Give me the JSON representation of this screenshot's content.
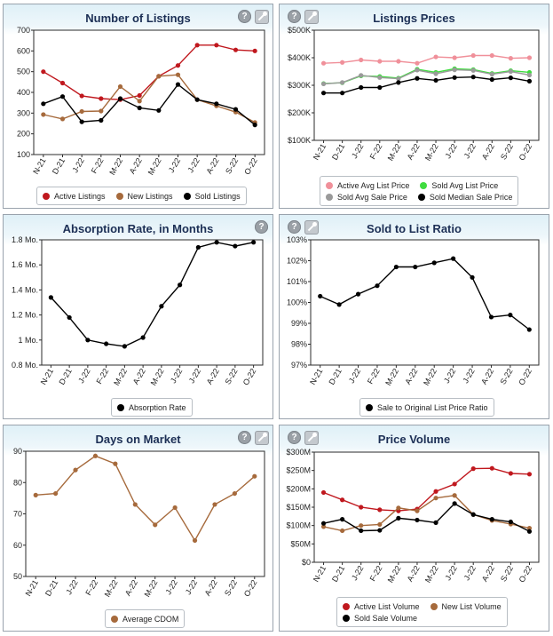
{
  "panels": {
    "listings": {
      "title": "Number of Listings"
    },
    "prices": {
      "title": "Listings Prices"
    },
    "absorption": {
      "title": "Absorption Rate, in Months"
    },
    "ratio": {
      "title": "Sold to List Ratio"
    },
    "dom": {
      "title": "Days on Market"
    },
    "volume": {
      "title": "Price Volume"
    }
  },
  "icons": {
    "help": "?"
  },
  "chart_data": [
    {
      "id": "listings",
      "type": "line",
      "title": "Number of Listings",
      "categories": [
        "N-21",
        "D-21",
        "J-22",
        "F-22",
        "M-22",
        "A-22",
        "M-22",
        "J-22",
        "J-22",
        "A-22",
        "S-22",
        "O-22"
      ],
      "ylim": [
        100,
        700
      ],
      "yticks": [
        100,
        200,
        300,
        400,
        500,
        600,
        700
      ],
      "ytick_labels": [
        "100",
        "200",
        "300",
        "400",
        "500",
        "600",
        "700"
      ],
      "grid": false,
      "legend_position": "bottom",
      "series": [
        {
          "name": "Active Listings",
          "color": "#c0181e",
          "values": [
            500,
            445,
            383,
            370,
            365,
            385,
            478,
            530,
            628,
            628,
            605,
            600
          ]
        },
        {
          "name": "New Listings",
          "color": "#a66a3c",
          "values": [
            293,
            272,
            308,
            310,
            428,
            358,
            478,
            485,
            365,
            335,
            305,
            255
          ]
        },
        {
          "name": "Sold Listings",
          "color": "#000000",
          "values": [
            345,
            380,
            258,
            265,
            370,
            325,
            313,
            438,
            365,
            345,
            318,
            243
          ]
        }
      ],
      "legend_rows": [
        [
          0,
          1,
          2
        ]
      ]
    },
    {
      "id": "prices",
      "type": "line",
      "title": "Listings Prices",
      "categories": [
        "N-21",
        "D-21",
        "J-22",
        "F-22",
        "M-22",
        "A-22",
        "M-22",
        "J-22",
        "J-22",
        "A-22",
        "S-22",
        "O-22"
      ],
      "ylim": [
        100000,
        500000
      ],
      "yticks": [
        100000,
        200000,
        300000,
        400000,
        500000
      ],
      "ytick_labels": [
        "$100K",
        "$200K",
        "$300K",
        "$400K",
        "$500K"
      ],
      "grid": false,
      "legend_position": "bottom",
      "series": [
        {
          "name": "Active Avg List Price",
          "color": "#f0909a",
          "values": [
            380000,
            383000,
            392000,
            387000,
            387000,
            380000,
            403000,
            400000,
            408000,
            408000,
            398000,
            400000
          ]
        },
        {
          "name": "Sold Avg List Price",
          "color": "#3fdc3f",
          "values": [
            306000,
            309000,
            334000,
            332000,
            326000,
            358000,
            347000,
            360000,
            357000,
            343000,
            353000,
            347000
          ]
        },
        {
          "name": "Sold Avg Sale Price",
          "color": "#9a9a9a",
          "values": [
            305000,
            310000,
            336000,
            328000,
            324000,
            355000,
            342000,
            356000,
            354000,
            340000,
            350000,
            337000
          ]
        },
        {
          "name": "Sold Median Sale Price",
          "color": "#000000",
          "values": [
            272000,
            272000,
            292000,
            292000,
            310000,
            325000,
            318000,
            328000,
            330000,
            321000,
            327000,
            315000
          ]
        }
      ],
      "legend_rows": [
        [
          0,
          1
        ],
        [
          2,
          3
        ]
      ]
    },
    {
      "id": "absorption",
      "type": "line",
      "title": "Absorption Rate, in Months",
      "categories": [
        "N-21",
        "D-21",
        "J-22",
        "F-22",
        "M-22",
        "A-22",
        "M-22",
        "J-22",
        "J-22",
        "A-22",
        "S-22",
        "O-22"
      ],
      "ylim": [
        0.8,
        1.8
      ],
      "yticks": [
        0.8,
        1.0,
        1.2,
        1.4,
        1.6,
        1.8
      ],
      "ytick_labels": [
        "0.8 Mo.",
        "1 Mo.",
        "1.2 Mo.",
        "1.4 Mo.",
        "1.6 Mo.",
        "1.8 Mo."
      ],
      "grid": false,
      "legend_position": "bottom",
      "series": [
        {
          "name": "Absorption Rate",
          "color": "#000000",
          "values": [
            1.34,
            1.18,
            1.0,
            0.97,
            0.95,
            1.02,
            1.27,
            1.44,
            1.74,
            1.78,
            1.75,
            1.78
          ]
        }
      ],
      "legend_rows": [
        [
          0
        ]
      ]
    },
    {
      "id": "ratio",
      "type": "line",
      "title": "Sold to List Ratio",
      "categories": [
        "N-21",
        "D-21",
        "J-22",
        "F-22",
        "M-22",
        "A-22",
        "M-22",
        "J-22",
        "J-22",
        "A-22",
        "S-22",
        "O-22"
      ],
      "ylim": [
        97,
        103
      ],
      "yticks": [
        97,
        98,
        99,
        100,
        101,
        102,
        103
      ],
      "ytick_labels": [
        "97%",
        "98%",
        "99%",
        "100%",
        "101%",
        "102%",
        "103%"
      ],
      "grid": false,
      "legend_position": "bottom",
      "series": [
        {
          "name": "Sale to Original List Price Ratio",
          "color": "#000000",
          "values": [
            100.3,
            99.9,
            100.4,
            100.8,
            101.7,
            101.7,
            101.9,
            102.1,
            101.2,
            99.3,
            99.4,
            98.7
          ]
        }
      ],
      "legend_rows": [
        [
          0
        ]
      ]
    },
    {
      "id": "dom",
      "type": "line",
      "title": "Days on Market",
      "categories": [
        "N-21",
        "D-21",
        "J-22",
        "F-22",
        "M-22",
        "A-22",
        "M-22",
        "J-22",
        "J-22",
        "A-22",
        "S-22",
        "O-22"
      ],
      "ylim": [
        50,
        90
      ],
      "yticks": [
        50,
        60,
        70,
        80,
        90
      ],
      "ytick_labels": [
        "50",
        "60",
        "70",
        "80",
        "90"
      ],
      "grid": false,
      "legend_position": "bottom",
      "series": [
        {
          "name": "Average CDOM",
          "color": "#a66a3c",
          "values": [
            76,
            76.5,
            84,
            88.5,
            86,
            73,
            66.5,
            72,
            61.5,
            73,
            76.5,
            82
          ]
        }
      ],
      "legend_rows": [
        [
          0
        ]
      ]
    },
    {
      "id": "volume",
      "type": "line",
      "title": "Price Volume",
      "categories": [
        "N-21",
        "D-21",
        "J-22",
        "F-22",
        "M-22",
        "A-22",
        "M-22",
        "J-22",
        "J-22",
        "A-22",
        "S-22",
        "O-22"
      ],
      "ylim": [
        0,
        300000000
      ],
      "yticks": [
        0,
        50000000,
        100000000,
        150000000,
        200000000,
        250000000,
        300000000
      ],
      "ytick_labels": [
        "$0",
        "$50M",
        "$100M",
        "$150M",
        "$200M",
        "$250M",
        "$300M"
      ],
      "grid": false,
      "legend_position": "bottom",
      "series": [
        {
          "name": "Active List Volume",
          "color": "#c0181e",
          "values": [
            190000000,
            170000000,
            150000000,
            143000000,
            140000000,
            145000000,
            193000000,
            213000000,
            255000000,
            256000000,
            242000000,
            240000000
          ]
        },
        {
          "name": "New List Volume",
          "color": "#a66a3c",
          "values": [
            97000000,
            86000000,
            100000000,
            103000000,
            148000000,
            140000000,
            175000000,
            182000000,
            130000000,
            114000000,
            104000000,
            93000000
          ]
        },
        {
          "name": "Sold Sale Volume",
          "color": "#000000",
          "values": [
            106000000,
            117000000,
            86000000,
            87000000,
            120000000,
            115000000,
            108000000,
            160000000,
            130000000,
            117000000,
            110000000,
            84000000
          ]
        }
      ],
      "legend_rows": [
        [
          0,
          1
        ],
        [
          2
        ]
      ]
    }
  ]
}
